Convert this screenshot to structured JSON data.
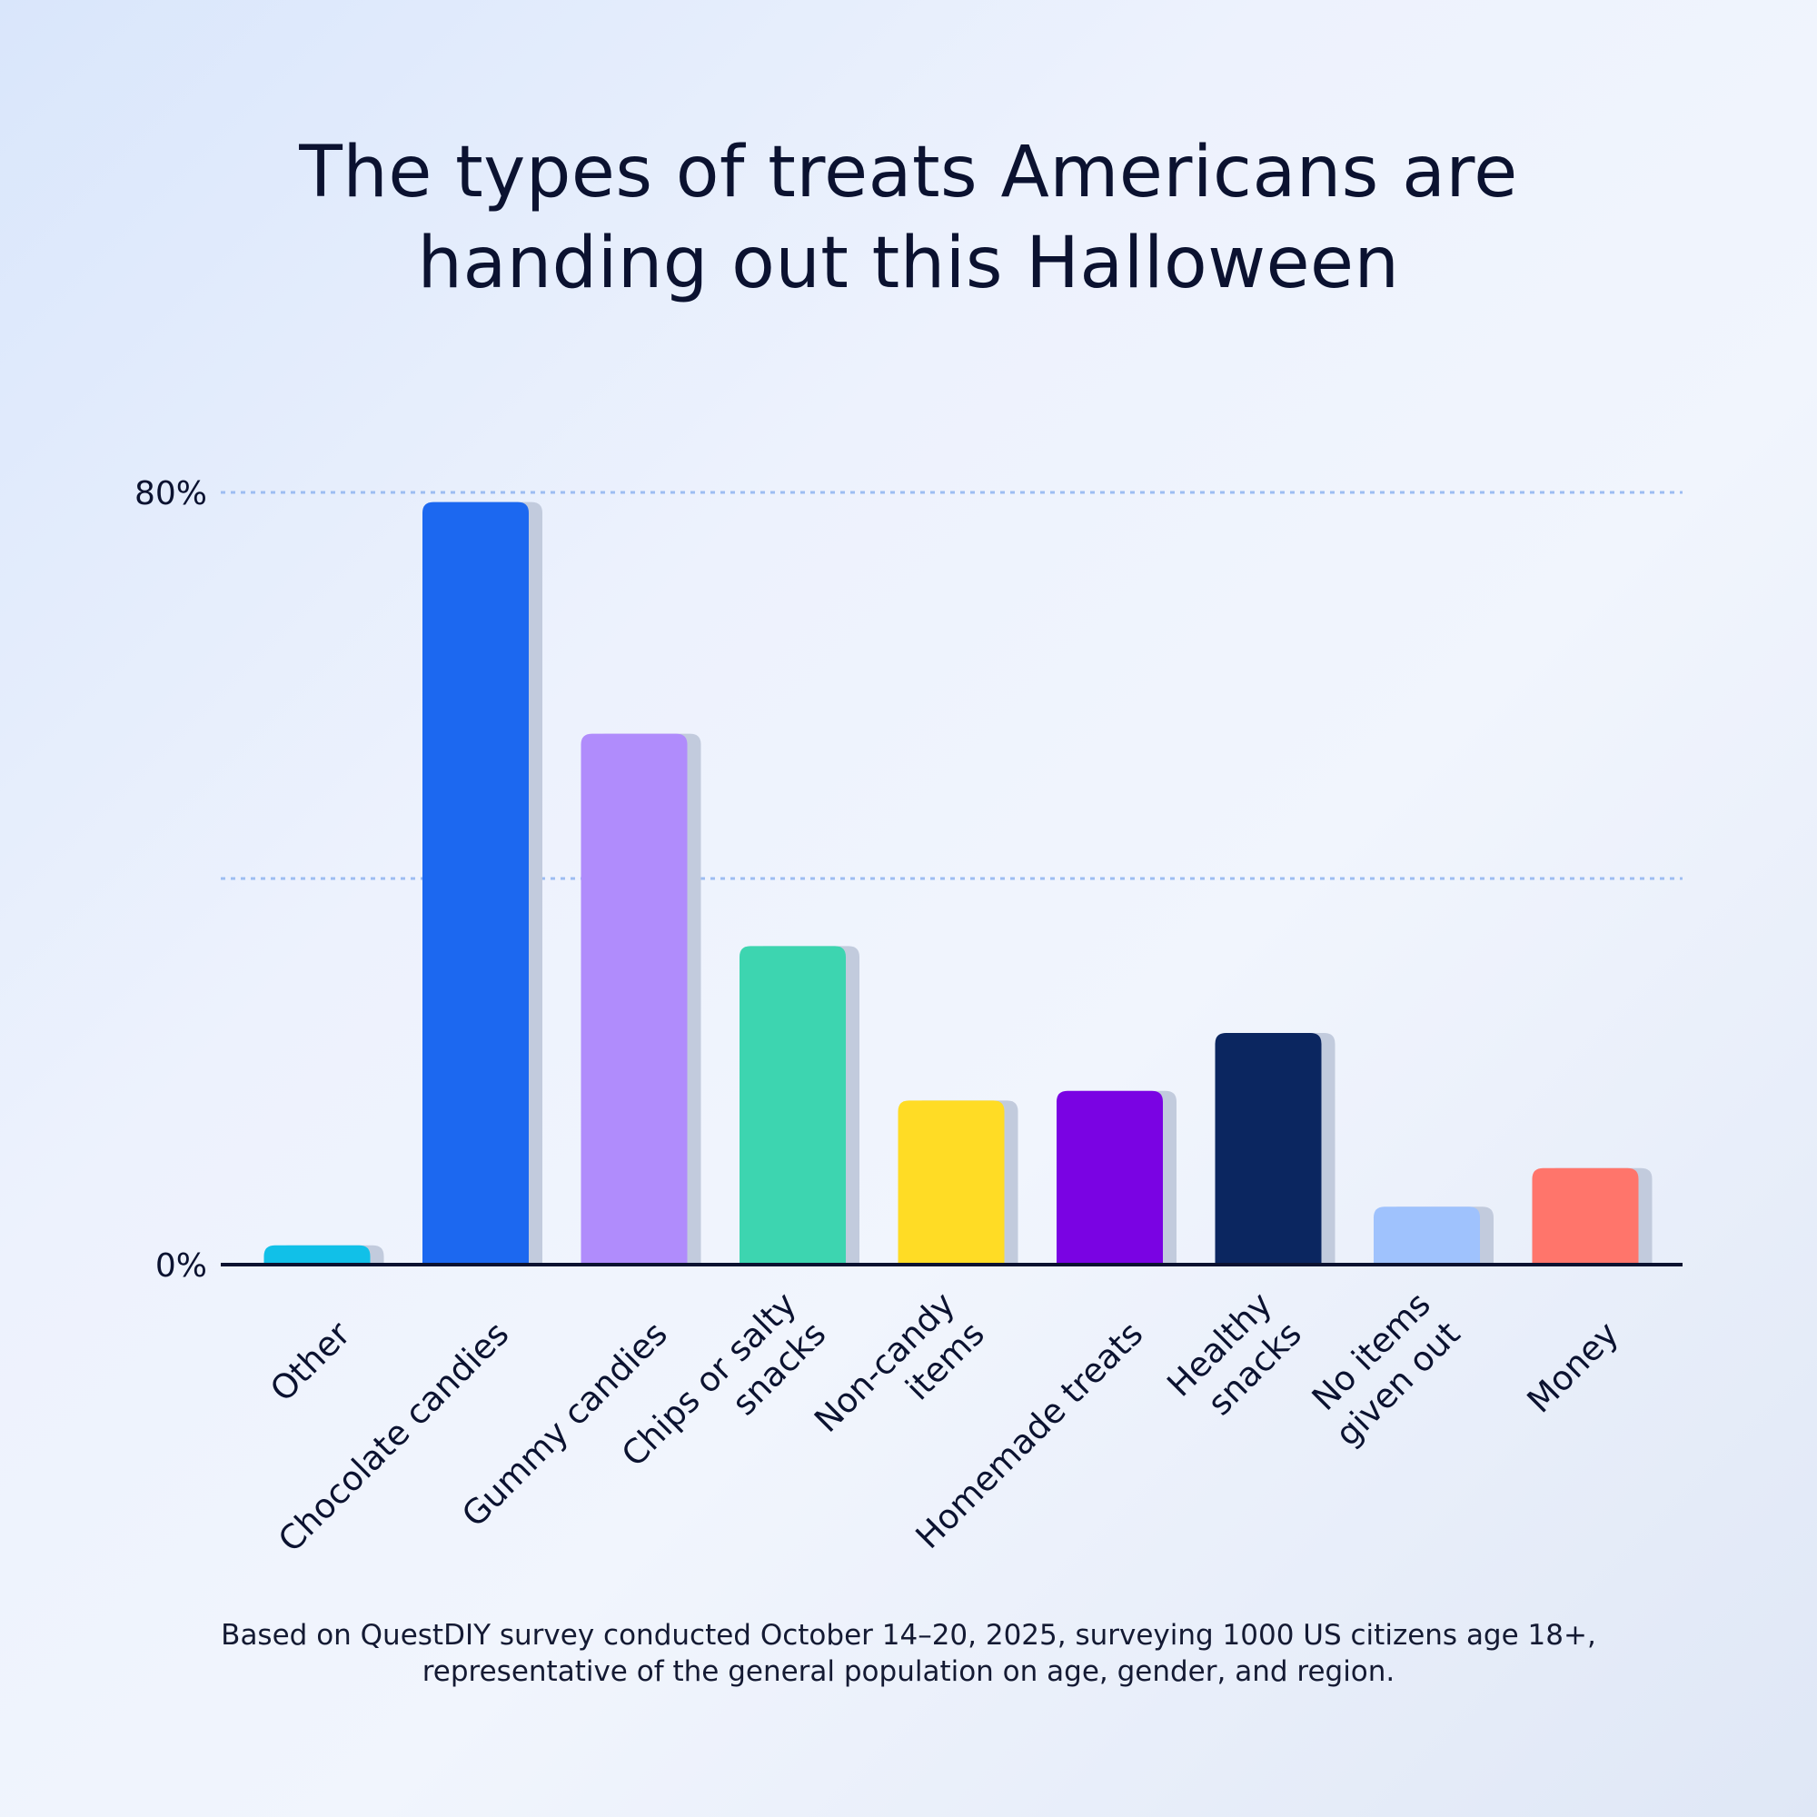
{
  "title_lines": [
    "The types of treats Americans are",
    "handing out this Halloween"
  ],
  "footnote_lines": [
    "Based on QuestDIY survey conducted October 14–20, 2025, surveying 1000 US citizens age 18+,",
    "representative of the general population on age, gender, and region."
  ],
  "chart_data": {
    "type": "bar",
    "title": "The types of treats Americans are handing out this Halloween",
    "categories": [
      "Other",
      "Chocolate candies",
      "Gummy candies",
      "Chips or salty snacks",
      "Non-candy items",
      "Homemade treats",
      "Healthy snacks",
      "No items given out",
      "Money"
    ],
    "category_label_lines": [
      [
        "Other"
      ],
      [
        "Chocolate candies"
      ],
      [
        "Gummy candies"
      ],
      [
        "Chips or salty",
        "snacks"
      ],
      [
        "Non-candy",
        "items"
      ],
      [
        "Homemade treats"
      ],
      [
        "Healthy",
        "snacks"
      ],
      [
        "No items",
        "given out"
      ],
      [
        "Money"
      ]
    ],
    "values": [
      2,
      79,
      55,
      33,
      17,
      18,
      24,
      6,
      10
    ],
    "colors": [
      "#11c0e8",
      "#1c68f0",
      "#b08cfc",
      "#3dd5b0",
      "#ffdc25",
      "#7a03e3",
      "#0b2660",
      "#9fc2fd",
      "#ff756b"
    ],
    "ylim": [
      0,
      80
    ],
    "ytick_labels": [
      {
        "value": 0,
        "label": "0%"
      },
      {
        "value": 80,
        "label": "80%"
      }
    ],
    "gridlines": [
      40,
      80
    ],
    "grid": true,
    "xlabel": "",
    "ylabel": ""
  }
}
